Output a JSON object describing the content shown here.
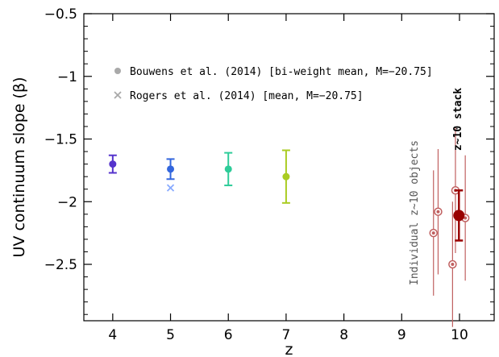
{
  "chart_data": {
    "type": "scatter",
    "xlabel": "z",
    "ylabel": "UV continuum slope (β)",
    "xlim": [
      3.5,
      10.6
    ],
    "ylim": [
      -2.95,
      -0.5
    ],
    "x_ticks": [
      4,
      5,
      6,
      7,
      8,
      9,
      10
    ],
    "x_tick_labels": [
      "4",
      "5",
      "6",
      "7",
      "8",
      "9",
      "10"
    ],
    "y_ticks": [
      -0.5,
      -1,
      -1.5,
      -2,
      -2.5
    ],
    "y_tick_labels": [
      "−0.5",
      "−1",
      "−1.5",
      "−2",
      "−2.5"
    ],
    "grid": false,
    "legend": [
      {
        "label": "Bouwens et al. (2014) [bi-weight mean, M=−20.75]",
        "marker": "circle",
        "color": "#a9a9a9"
      },
      {
        "label": "Rogers et al. (2014) [mean, M=−20.75]",
        "marker": "cross",
        "color": "#a9a9a9"
      }
    ],
    "series": [
      {
        "name": "Bouwens et al. (2014) [bi-weight mean, M=−20.75]",
        "points": [
          {
            "x": 4,
            "y": -1.7,
            "err": 0.07,
            "color": "#5533cc"
          },
          {
            "x": 5,
            "y": -1.74,
            "err": 0.08,
            "color": "#3366dd"
          },
          {
            "x": 6,
            "y": -1.74,
            "err": 0.13,
            "color": "#2ecc99"
          },
          {
            "x": 7,
            "y": -1.8,
            "err": 0.21,
            "color": "#aacc22"
          }
        ]
      },
      {
        "name": "Rogers et al. (2014) [mean, M=−20.75]",
        "points": [
          {
            "x": 5,
            "y": -1.89,
            "color": "#88aaff"
          }
        ]
      },
      {
        "points": [
          {
            "x": 9.55,
            "y": -2.25,
            "err": 0.5
          },
          {
            "x": 9.63,
            "y": -2.08,
            "err": 0.5
          },
          {
            "x": 9.88,
            "y": -2.5,
            "err": 0.5
          },
          {
            "x": 9.93,
            "y": -1.91,
            "err": 0.5
          },
          {
            "x": 10.1,
            "y": -2.13,
            "err": 0.5
          }
        ],
        "color": "#c06060"
      },
      {
        "points": [
          {
            "x": 9.99,
            "y": -2.11,
            "err": 0.2
          }
        ],
        "color": "#990000"
      }
    ],
    "annotations": [
      {
        "text": "Individual z~10 objects",
        "color": "#555555"
      },
      {
        "text": "z~10 stack",
        "color": "#000000"
      }
    ]
  }
}
